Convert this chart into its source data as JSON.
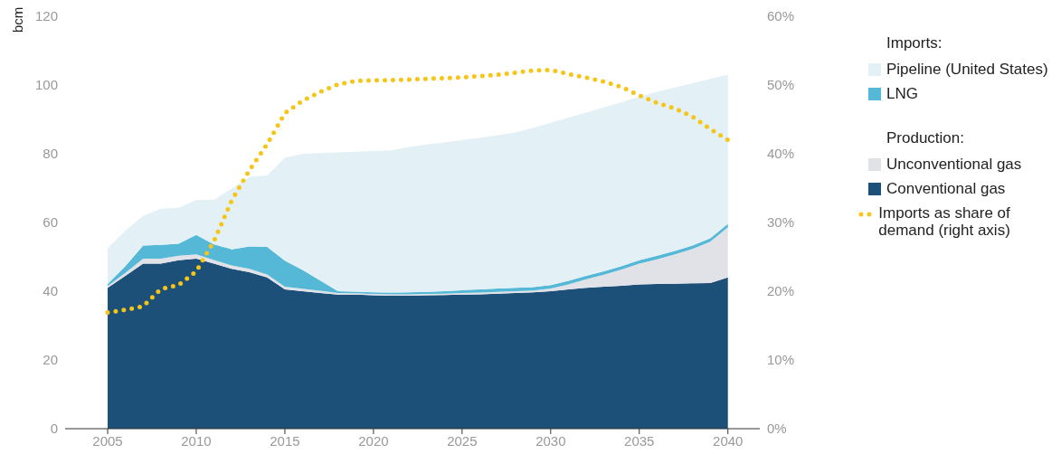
{
  "chart_data": {
    "type": "area",
    "stacked": true,
    "ylabel": "bcm",
    "x": [
      2005,
      2006,
      2007,
      2008,
      2009,
      2010,
      2011,
      2012,
      2013,
      2014,
      2015,
      2016,
      2017,
      2018,
      2019,
      2020,
      2021,
      2022,
      2023,
      2024,
      2025,
      2026,
      2027,
      2028,
      2029,
      2030,
      2031,
      2032,
      2033,
      2034,
      2035,
      2036,
      2037,
      2038,
      2039,
      2040
    ],
    "xlim": [
      2002.6,
      2041.8
    ],
    "xticks": [
      2005,
      2010,
      2015,
      2020,
      2025,
      2030,
      2035,
      2040
    ],
    "ylim": [
      0,
      120
    ],
    "yticks": [
      0,
      20,
      40,
      60,
      80,
      100,
      120
    ],
    "y2lim": [
      0,
      60
    ],
    "y2ticks": [
      {
        "value": 0,
        "label": "0%"
      },
      {
        "value": 10,
        "label": "10%"
      },
      {
        "value": 20,
        "label": "20%"
      },
      {
        "value": 30,
        "label": "30%"
      },
      {
        "value": 40,
        "label": "40%"
      },
      {
        "value": 50,
        "label": "50%"
      },
      {
        "value": 60,
        "label": "60%"
      }
    ],
    "grid": false,
    "legend": "right",
    "line_style": "dotted",
    "marker": "none",
    "annotations": [
      "Imports:",
      "Production:"
    ],
    "series": [
      {
        "name": "Conventional gas",
        "color": "#1d5078",
        "values": [
          41,
          44.5,
          48,
          48,
          49,
          49.5,
          48,
          46.5,
          45.5,
          44,
          40.5,
          40,
          39.5,
          39,
          39,
          38.8,
          38.7,
          38.7,
          38.8,
          38.9,
          39,
          39.1,
          39.3,
          39.5,
          39.7,
          40,
          40.5,
          41,
          41.3,
          41.6,
          42,
          42.1,
          42.2,
          42.3,
          42.4,
          44
        ]
      },
      {
        "name": "Unconventional gas",
        "color": "#e1e1e8",
        "values": [
          0.5,
          0.8,
          1.5,
          1.5,
          1.3,
          1.2,
          1.1,
          1,
          1,
          0.9,
          0.8,
          0.7,
          0.6,
          0.5,
          0.4,
          0.4,
          0.4,
          0.4,
          0.4,
          0.4,
          0.5,
          0.5,
          0.5,
          0.5,
          0.5,
          0.8,
          1.5,
          2.5,
          3.5,
          4.7,
          6,
          7.2,
          8.5,
          10,
          12,
          14.6
        ]
      },
      {
        "name": "LNG",
        "color": "#55b8d6",
        "values": [
          0.6,
          2,
          3.8,
          4,
          3.5,
          5.7,
          4.5,
          4.7,
          6.5,
          8,
          7.6,
          5.5,
          3,
          0.5,
          0.5,
          0.5,
          0.5,
          0.6,
          0.6,
          0.7,
          0.8,
          0.9,
          1,
          1,
          1,
          1,
          1,
          1,
          1,
          1,
          1,
          1,
          1,
          1,
          1,
          1
        ]
      },
      {
        "name": "Pipeline (United States)",
        "color": "#e3f0f6",
        "values": [
          10.4,
          10.3,
          8.6,
          10.5,
          10.5,
          10.2,
          13,
          17.7,
          20.2,
          20.8,
          29.9,
          33.8,
          37.1,
          40.4,
          40.7,
          41.1,
          41.4,
          42.3,
          42.9,
          43.3,
          43.7,
          44.1,
          44.6,
          45.2,
          46.3,
          47.2,
          47.5,
          47.5,
          47.7,
          47.7,
          47.6,
          47.7,
          47.6,
          47.2,
          46.4,
          43.4
        ]
      },
      {
        "name": "Imports as share of demand (right axis)",
        "type": "line",
        "axis": "y2",
        "color": "#f5c518",
        "values": [
          16.9,
          17.3,
          17.8,
          20.3,
          20.9,
          22.9,
          27.3,
          33.2,
          37.6,
          41.4,
          45.9,
          47.7,
          49,
          50.1,
          50.6,
          50.7,
          50.7,
          50.8,
          50.9,
          51,
          51.1,
          51.3,
          51.5,
          51.8,
          52.1,
          52.2,
          51.6,
          51.1,
          50.5,
          49.7,
          48.5,
          47.4,
          46.6,
          45.4,
          43.6,
          42
        ]
      }
    ]
  }
}
